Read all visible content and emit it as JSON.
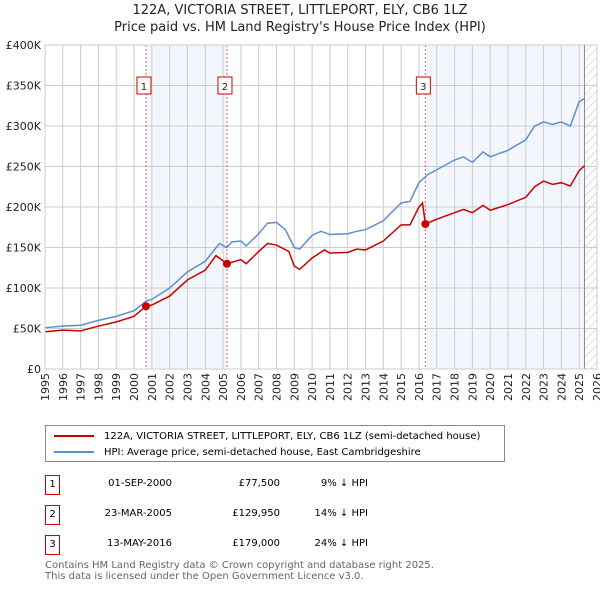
{
  "chart_data": {
    "type": "line",
    "title": "122A, VICTORIA STREET, LITTLEPORT, ELY, CB6 1LZ",
    "subtitle": "Price paid vs. HM Land Registry's House Price Index (HPI)",
    "xlim": [
      1995,
      2026
    ],
    "ylim": [
      0,
      400000
    ],
    "x_ticks": [
      "1995",
      "1996",
      "1997",
      "1998",
      "1999",
      "2000",
      "2001",
      "2002",
      "2003",
      "2004",
      "2005",
      "2006",
      "2007",
      "2008",
      "2009",
      "2010",
      "2011",
      "2012",
      "2013",
      "2014",
      "2015",
      "2016",
      "2017",
      "2018",
      "2019",
      "2020",
      "2021",
      "2022",
      "2023",
      "2024",
      "2025",
      "2026"
    ],
    "y_ticks": [
      {
        "v": 0,
        "l": "£0"
      },
      {
        "v": 50000,
        "l": "£50K"
      },
      {
        "v": 100000,
        "l": "£100K"
      },
      {
        "v": 150000,
        "l": "£150K"
      },
      {
        "v": 200000,
        "l": "£200K"
      },
      {
        "v": 250000,
        "l": "£250K"
      },
      {
        "v": 300000,
        "l": "£300K"
      },
      {
        "v": 350000,
        "l": "£350K"
      },
      {
        "v": 400000,
        "l": "£400K"
      }
    ],
    "grid": true,
    "forecast_start": 2025.3,
    "series": [
      {
        "name": "122A, VICTORIA STREET, LITTLEPORT, ELY, CB6 1LZ (semi-detached house)",
        "color": "#cc0000",
        "x": [
          1995,
          1996,
          1997,
          1998,
          1999,
          2000,
          2000.67,
          2001,
          2002,
          2003,
          2004,
          2004.6,
          2005.22,
          2006,
          2006.3,
          2007,
          2007.5,
          2008,
          2008.7,
          2009,
          2009.3,
          2010,
          2010.7,
          2011,
          2012,
          2012.5,
          2013,
          2014,
          2015,
          2015.5,
          2016,
          2016.2,
          2016.36,
          2017,
          2018,
          2018.5,
          2019,
          2019.6,
          2020,
          2021,
          2022,
          2022.5,
          2023,
          2023.5,
          2024,
          2024.5,
          2025,
          2025.3
        ],
        "y": [
          46,
          48,
          47,
          53,
          58,
          65,
          77.5,
          79,
          90,
          110,
          122,
          140,
          129.95,
          135,
          130,
          145,
          155,
          153,
          145,
          127,
          123,
          137,
          147,
          143,
          144,
          148,
          147,
          158,
          178,
          178,
          200,
          205,
          179,
          185,
          193,
          197,
          193,
          202,
          196,
          203,
          212,
          225,
          232,
          228,
          230,
          226,
          245,
          251
        ]
      },
      {
        "name": "HPI: Average price, semi-detached house, East Cambridgeshire",
        "color": "#5b8fd0",
        "x": [
          1995,
          1996,
          1997,
          1998,
          1999,
          2000,
          2000.7,
          2001,
          2002,
          2003,
          2004,
          2004.8,
          2005.2,
          2005.5,
          2006,
          2006.3,
          2007,
          2007.5,
          2008,
          2008.5,
          2009,
          2009.3,
          2010,
          2010.5,
          2011,
          2012,
          2012.5,
          2013,
          2014,
          2015,
          2015.5,
          2016,
          2016.5,
          2017,
          2018,
          2018.5,
          2019,
          2019.6,
          2020,
          2021,
          2022,
          2022.5,
          2023,
          2023.5,
          2024,
          2024.5,
          2025,
          2025.3
        ],
        "y": [
          51,
          53,
          54,
          60,
          65,
          72,
          84,
          86,
          100,
          120,
          133,
          155,
          150,
          157,
          158,
          152,
          167,
          180,
          181,
          172,
          150,
          148,
          165,
          170,
          166,
          167,
          170,
          172,
          183,
          205,
          207,
          230,
          240,
          246,
          258,
          262,
          255,
          268,
          262,
          270,
          283,
          300,
          305,
          302,
          305,
          300,
          330,
          334
        ]
      }
    ],
    "y_unit": "thousands GBP",
    "sales": [
      {
        "n": "1",
        "x": 2000.67,
        "y": 77.5,
        "date": "01-SEP-2000",
        "price": "£77,500",
        "hpi": "9% ↓ HPI"
      },
      {
        "n": "2",
        "x": 2005.22,
        "y": 129.95,
        "date": "23-MAR-2005",
        "price": "£129,950",
        "hpi": "14% ↓ HPI"
      },
      {
        "n": "3",
        "x": 2016.36,
        "y": 179,
        "date": "13-MAY-2016",
        "price": "£179,000",
        "hpi": "24% ↓ HPI"
      }
    ]
  },
  "footer": [
    "Contains HM Land Registry data © Crown copyright and database right 2025.",
    "This data is licensed under the Open Government Licence v3.0."
  ]
}
